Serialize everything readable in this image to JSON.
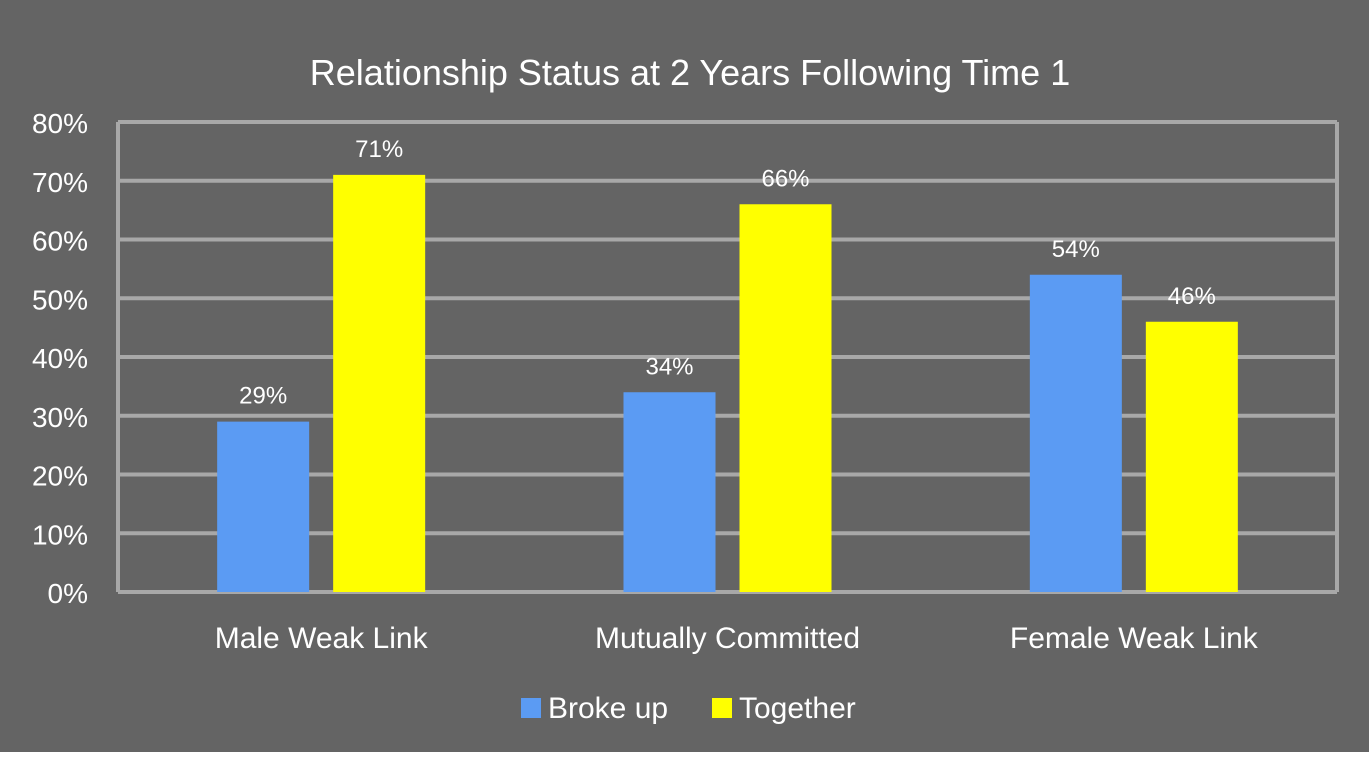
{
  "chart_data": {
    "type": "bar",
    "title": "Relationship Status at 2 Years Following Time 1",
    "xlabel": "",
    "ylabel": "",
    "categories": [
      "Male Weak Link",
      "Mutually Committed",
      "Female Weak Link"
    ],
    "series": [
      {
        "name": "Broke up",
        "values": [
          29,
          34,
          54
        ],
        "labels": [
          "29%",
          "34%",
          "54%"
        ],
        "color": "#5b9bf3"
      },
      {
        "name": "Together",
        "values": [
          71,
          66,
          46
        ],
        "labels": [
          "71%",
          "66%",
          "46%"
        ],
        "color": "#ffff00"
      }
    ],
    "ylim": [
      0,
      80
    ],
    "yticks": [
      0,
      10,
      20,
      30,
      40,
      50,
      60,
      70,
      80
    ],
    "ytick_labels": [
      "0%",
      "10%",
      "20%",
      "30%",
      "40%",
      "50%",
      "60%",
      "70%",
      "80%"
    ],
    "grid": true,
    "legend": "bottom-center"
  },
  "colors": {
    "background": "#646464",
    "gridline": "#a8a8a8",
    "text": "#ffffff"
  }
}
